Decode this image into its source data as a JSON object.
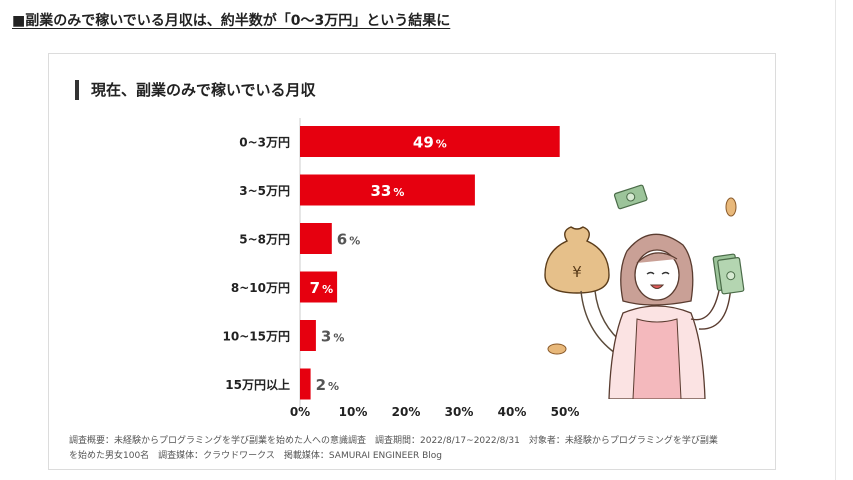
{
  "page": {
    "heading": "■副業のみで稼いでいる月収は、約半数が「0〜3万円」という結果に"
  },
  "colors": {
    "bar": "#e6000f",
    "label_inside": "#ffffff",
    "label_outside": "#555555"
  },
  "chart_data": {
    "type": "bar",
    "orientation": "horizontal",
    "title": "現在、副業のみで稼いでいる月収",
    "categories": [
      "0~3万円",
      "3~5万円",
      "5~8万円",
      "8~10万円",
      "10~15万円",
      "15万円以上"
    ],
    "values": [
      49,
      33,
      6,
      7,
      3,
      2
    ],
    "data_labels": [
      "49",
      "33",
      "6",
      "7",
      "3",
      "2"
    ],
    "label_unit": "%",
    "label_inside": [
      true,
      true,
      false,
      true,
      false,
      false
    ],
    "x_ticks": [
      "0%",
      "10%",
      "20%",
      "30%",
      "40%",
      "50%"
    ],
    "xlim": [
      0,
      50
    ],
    "grid": false,
    "legend": "none"
  },
  "footnote": {
    "line1": "調査概要：未経験からプログラミングを学び副業を始めた人への意識調査　調査期間：2022/8/17~2022/8/31　対象者：未経験からプログラミングを学び副業",
    "line2": "を始めた男女100名　調査媒体：クラウドワークス　掲載媒体：SAMURAI ENGINEER Blog"
  },
  "illustration": {
    "bag_symbol": "¥"
  }
}
